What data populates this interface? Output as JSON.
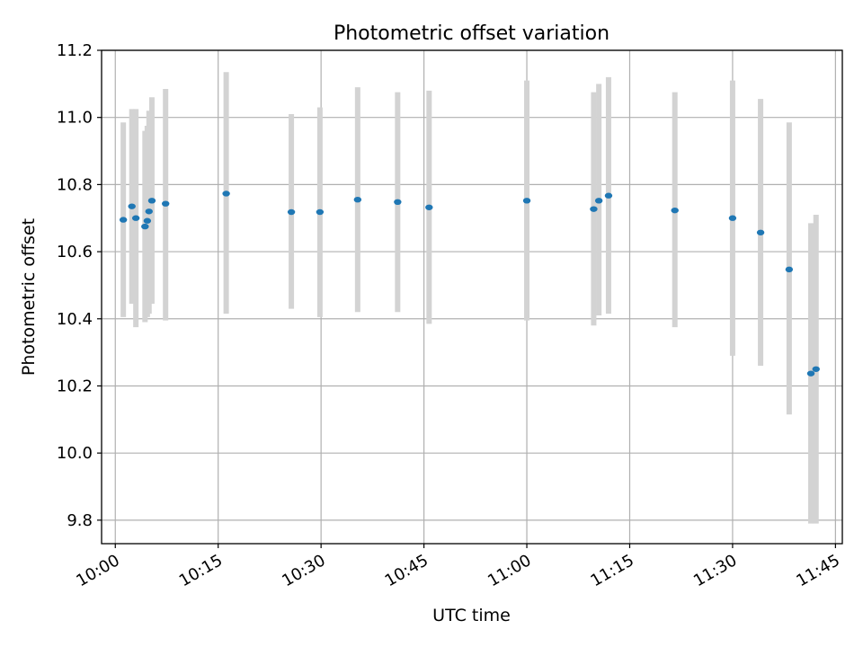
{
  "chart_data": {
    "type": "scatter",
    "title": "Photometric offset variation",
    "xlabel": "UTC time",
    "ylabel": "Photometric offset",
    "x_is_time": true,
    "x_ticks": [
      "10:00",
      "10:15",
      "10:30",
      "10:45",
      "11:00",
      "11:15",
      "11:30",
      "11:45"
    ],
    "xlim": [
      "09:58",
      "11:46"
    ],
    "ylim": [
      9.73,
      11.2
    ],
    "y_ticks": [
      9.8,
      10.0,
      10.2,
      10.4,
      10.6,
      10.8,
      11.0,
      11.2
    ],
    "y_tick_labels": [
      "9.8",
      "10.0",
      "10.2",
      "10.4",
      "10.6",
      "10.8",
      "11.0",
      "11.2"
    ],
    "grid": true,
    "marker_color": "#1f77b4",
    "errorbar_color": "#d3d3d3",
    "points": [
      {
        "x": "10:01:10",
        "y": 10.695,
        "ylo": 10.405,
        "yhi": 10.985
      },
      {
        "x": "10:02:25",
        "y": 10.735,
        "ylo": 10.445,
        "yhi": 11.025
      },
      {
        "x": "10:03:00",
        "y": 10.7,
        "ylo": 10.375,
        "yhi": 11.025
      },
      {
        "x": "10:04:20",
        "y": 10.675,
        "ylo": 10.39,
        "yhi": 10.96
      },
      {
        "x": "10:04:40",
        "y": 10.692,
        "ylo": 10.405,
        "yhi": 10.975
      },
      {
        "x": "10:04:55",
        "y": 10.72,
        "ylo": 10.415,
        "yhi": 11.02
      },
      {
        "x": "10:05:20",
        "y": 10.752,
        "ylo": 10.445,
        "yhi": 11.06
      },
      {
        "x": "10:07:20",
        "y": 10.743,
        "ylo": 10.395,
        "yhi": 11.085
      },
      {
        "x": "10:16:10",
        "y": 10.773,
        "ylo": 10.415,
        "yhi": 11.135
      },
      {
        "x": "10:25:40",
        "y": 10.718,
        "ylo": 10.43,
        "yhi": 11.01
      },
      {
        "x": "10:29:50",
        "y": 10.718,
        "ylo": 10.405,
        "yhi": 11.03
      },
      {
        "x": "10:35:20",
        "y": 10.755,
        "ylo": 10.42,
        "yhi": 11.09
      },
      {
        "x": "10:41:10",
        "y": 10.748,
        "ylo": 10.42,
        "yhi": 11.075
      },
      {
        "x": "10:45:45",
        "y": 10.732,
        "ylo": 10.385,
        "yhi": 11.08
      },
      {
        "x": "11:00:00",
        "y": 10.752,
        "ylo": 10.395,
        "yhi": 11.11
      },
      {
        "x": "11:09:45",
        "y": 10.727,
        "ylo": 10.38,
        "yhi": 11.075
      },
      {
        "x": "11:10:30",
        "y": 10.752,
        "ylo": 10.41,
        "yhi": 11.1
      },
      {
        "x": "11:11:55",
        "y": 10.767,
        "ylo": 10.415,
        "yhi": 11.12
      },
      {
        "x": "11:21:35",
        "y": 10.723,
        "ylo": 10.375,
        "yhi": 11.075
      },
      {
        "x": "11:30:00",
        "y": 10.7,
        "ylo": 10.29,
        "yhi": 11.11
      },
      {
        "x": "11:34:05",
        "y": 10.657,
        "ylo": 10.26,
        "yhi": 11.055
      },
      {
        "x": "11:38:15",
        "y": 10.547,
        "ylo": 10.115,
        "yhi": 10.985
      },
      {
        "x": "11:41:25",
        "y": 10.237,
        "ylo": 9.79,
        "yhi": 10.685
      },
      {
        "x": "11:42:10",
        "y": 10.25,
        "ylo": 9.79,
        "yhi": 10.71
      }
    ]
  }
}
